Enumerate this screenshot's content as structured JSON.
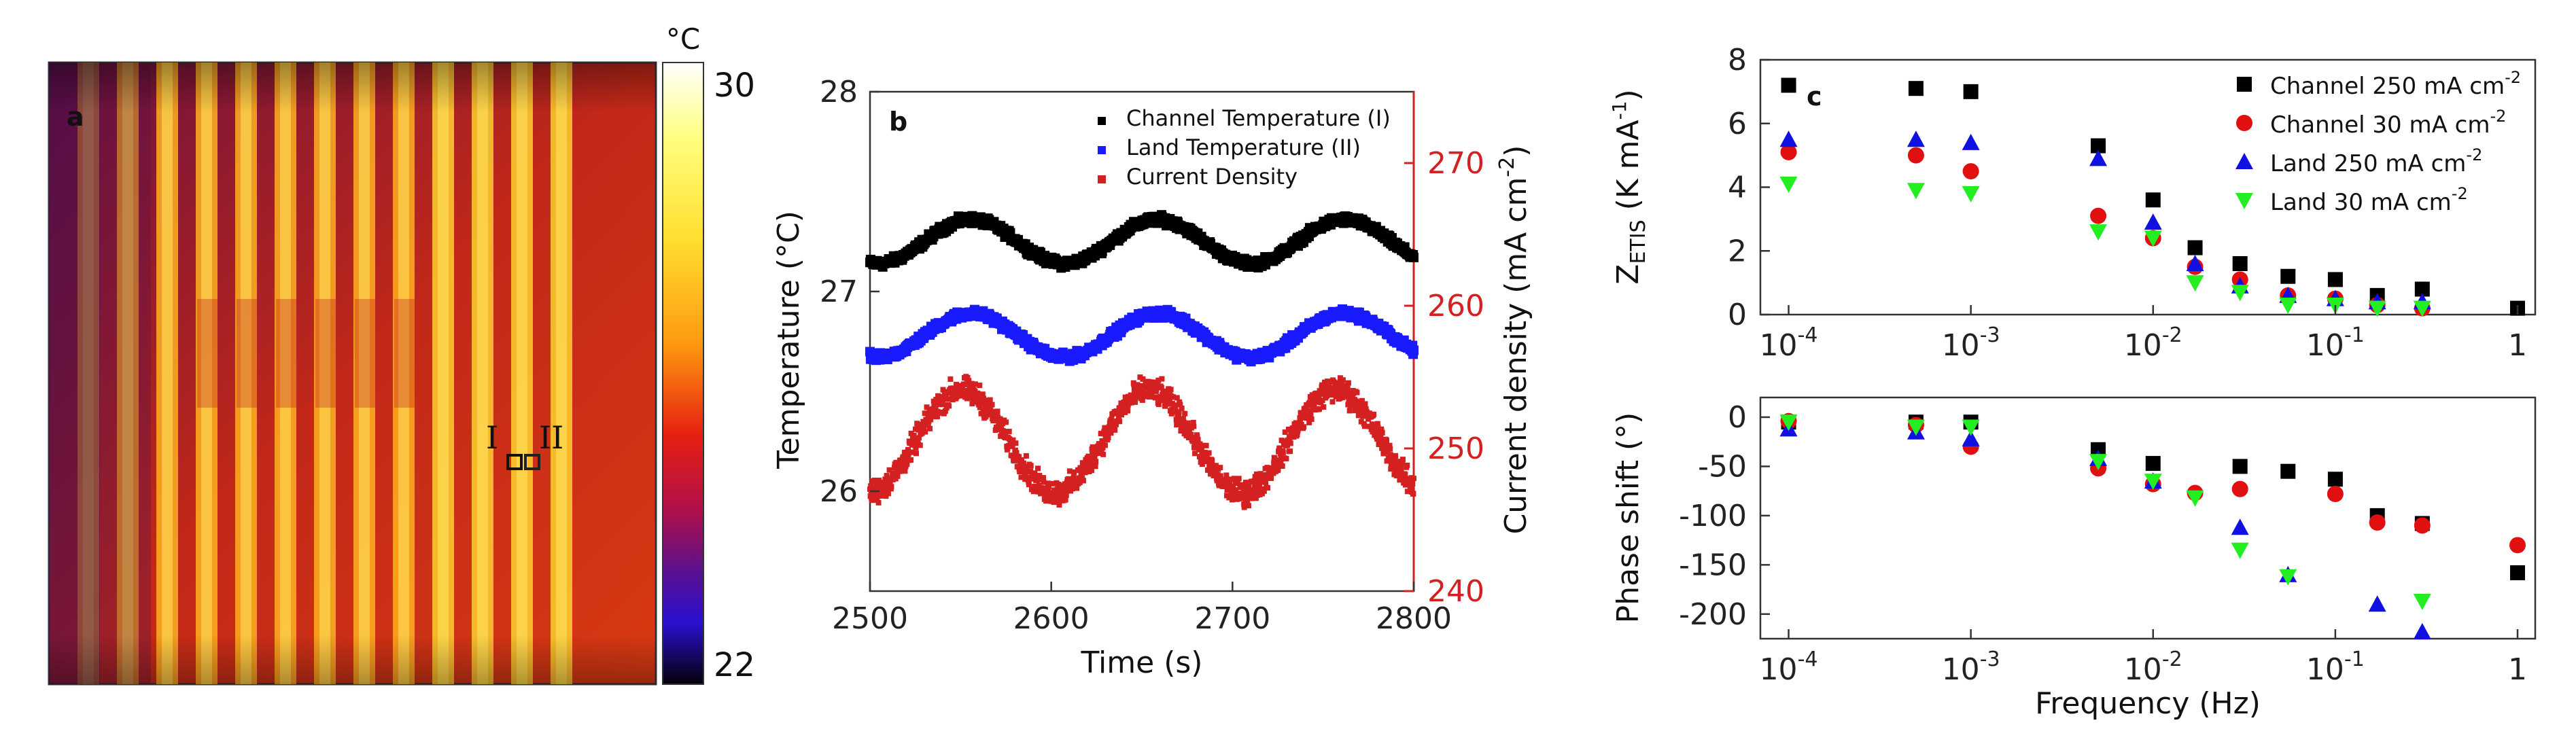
{
  "chart_data": [
    {
      "panel": "a",
      "type": "heatmap",
      "title": "",
      "colorbar": {
        "unit": "°C",
        "max_label": "30",
        "min_label": "22",
        "range": [
          22,
          30
        ]
      },
      "markers": {
        "left": "I",
        "right": "II"
      },
      "stripe_count": 13
    },
    {
      "panel": "b",
      "type": "scatter",
      "xlabel": "Time (s)",
      "ylabel": "Temperature (°C)",
      "y2label_main": "Current density (mA cm",
      "y2label_sup": "-2",
      "y2label_end": ")",
      "xlim": [
        2500,
        2800
      ],
      "ylim": [
        25.5,
        28.0
      ],
      "y2lim": [
        240,
        275
      ],
      "x_ticks": [
        "2500",
        "2600",
        "2700",
        "2800"
      ],
      "y_ticks": [
        "26",
        "27",
        "28"
      ],
      "y2_ticks": [
        "240",
        "250",
        "260",
        "270"
      ],
      "legend_position": "top-right",
      "series": [
        {
          "name": "Channel Temperature (I)",
          "color": "#000000",
          "axis": "left",
          "mean": 27.25,
          "amplitude": 0.11,
          "period_s": 103,
          "phase_s": 2530,
          "noise": 0.03
        },
        {
          "name": "Land Temperature (II)",
          "color": "#1a1aff",
          "axis": "left",
          "mean": 26.78,
          "amplitude": 0.11,
          "period_s": 103,
          "phase_s": 2530,
          "noise": 0.03
        },
        {
          "name": "Current Density",
          "color": "#d42020",
          "axis": "right",
          "mean": 250.5,
          "amplitude": 3.6,
          "period_s": 103,
          "phase_s": 2525,
          "noise": 1.3
        }
      ]
    },
    {
      "panel": "c",
      "type": "scatter",
      "xlabel": "Frequency (Hz)",
      "x_scale": "log",
      "xlim": [
        7e-05,
        1.25
      ],
      "x_ticks": [
        {
          "value": 0.0001,
          "base": "10",
          "exp": "-4"
        },
        {
          "value": 0.001,
          "base": "10",
          "exp": "-3"
        },
        {
          "value": 0.01,
          "base": "10",
          "exp": "-2"
        },
        {
          "value": 0.1,
          "base": "10",
          "exp": "-1"
        },
        {
          "value": 1,
          "base": "1",
          "exp": ""
        }
      ],
      "top": {
        "ylabel_main": "Z",
        "ylabel_sub": "ETIS",
        "ylabel_unit": " (K mA",
        "ylabel_sup": "-1",
        "ylabel_end": ")",
        "ylim": [
          0,
          8
        ],
        "y_ticks": [
          "0",
          "2",
          "4",
          "6",
          "8"
        ],
        "legend_position": "top-right",
        "series": [
          {
            "name": "Channel 250 mA cm",
            "sup": "-2",
            "color": "#000000",
            "marker": "square",
            "x": [
              0.0001,
              0.0005,
              0.001,
              0.005,
              0.01,
              0.017,
              0.03,
              0.055,
              0.1,
              0.17,
              0.3,
              1
            ],
            "y": [
              7.2,
              7.1,
              7.0,
              5.3,
              3.6,
              2.1,
              1.6,
              1.2,
              1.1,
              0.6,
              0.8,
              0.2
            ]
          },
          {
            "name": "Channel 30 mA cm",
            "sup": "-2",
            "color": "#e01010",
            "marker": "circle",
            "x": [
              0.0001,
              0.0005,
              0.001,
              0.005,
              0.01,
              0.017,
              0.03,
              0.055,
              0.1,
              0.17,
              0.3
            ],
            "y": [
              5.1,
              5.0,
              4.5,
              3.1,
              2.4,
              1.5,
              1.1,
              0.6,
              0.5,
              0.3,
              0.2
            ]
          },
          {
            "name": "Land 250 mA cm",
            "sup": "-2",
            "color": "#1010e0",
            "marker": "triangle-up",
            "x": [
              0.0001,
              0.0005,
              0.001,
              0.005,
              0.01,
              0.017,
              0.03,
              0.055,
              0.1,
              0.17,
              0.3
            ],
            "y": [
              5.5,
              5.5,
              5.4,
              4.9,
              2.9,
              1.6,
              0.9,
              0.6,
              0.5,
              0.4,
              0.4
            ]
          },
          {
            "name": "Land 30 mA cm",
            "sup": "-2",
            "color": "#22ee22",
            "marker": "triangle-down",
            "x": [
              0.0001,
              0.0005,
              0.001,
              0.005,
              0.01,
              0.017,
              0.03,
              0.055,
              0.1,
              0.17,
              0.3
            ],
            "y": [
              4.1,
              3.9,
              3.8,
              2.6,
              2.4,
              1.0,
              0.7,
              0.3,
              0.3,
              0.2,
              0.2
            ]
          }
        ]
      },
      "bottom": {
        "ylabel": "Phase shift (°)",
        "ylim": [
          -225,
          20
        ],
        "y_ticks": [
          "0",
          "-50",
          "-100",
          "-150",
          "-200"
        ],
        "y_tick_values": [
          0,
          -50,
          -100,
          -150,
          -200
        ],
        "series": [
          {
            "name": "Channel 250 mA cm-2",
            "color": "#000000",
            "marker": "square",
            "x": [
              0.0001,
              0.0005,
              0.001,
              0.005,
              0.01,
              0.03,
              0.055,
              0.1,
              0.17,
              0.3,
              1
            ],
            "y": [
              -5,
              -5,
              -5,
              -33,
              -47,
              -50,
              -55,
              -63,
              -100,
              -108,
              -158
            ]
          },
          {
            "name": "Channel 30 mA cm-2",
            "color": "#e01010",
            "marker": "circle",
            "x": [
              0.0001,
              0.0005,
              0.001,
              0.005,
              0.01,
              0.017,
              0.03,
              0.1,
              0.17,
              0.3,
              1
            ],
            "y": [
              -4,
              -8,
              -30,
              -52,
              -68,
              -77,
              -73,
              -78,
              -107,
              -110,
              -130
            ]
          },
          {
            "name": "Land 250 mA cm-2",
            "color": "#1010e0",
            "marker": "triangle-up",
            "x": [
              0.0001,
              0.0005,
              0.001,
              0.005,
              0.01,
              0.03,
              0.055,
              0.17,
              0.3
            ],
            "y": [
              -12,
              -15,
              -22,
              -42,
              -65,
              -112,
              -160,
              -190,
              -218
            ]
          },
          {
            "name": "Land 30 mA cm-2",
            "color": "#22ee22",
            "marker": "triangle-down",
            "x": [
              0.0001,
              0.0005,
              0.001,
              0.005,
              0.01,
              0.017,
              0.03,
              0.055,
              0.3
            ],
            "y": [
              -5,
              -10,
              -10,
              -45,
              -65,
              -82,
              -135,
              -162,
              -187
            ]
          }
        ]
      }
    }
  ]
}
